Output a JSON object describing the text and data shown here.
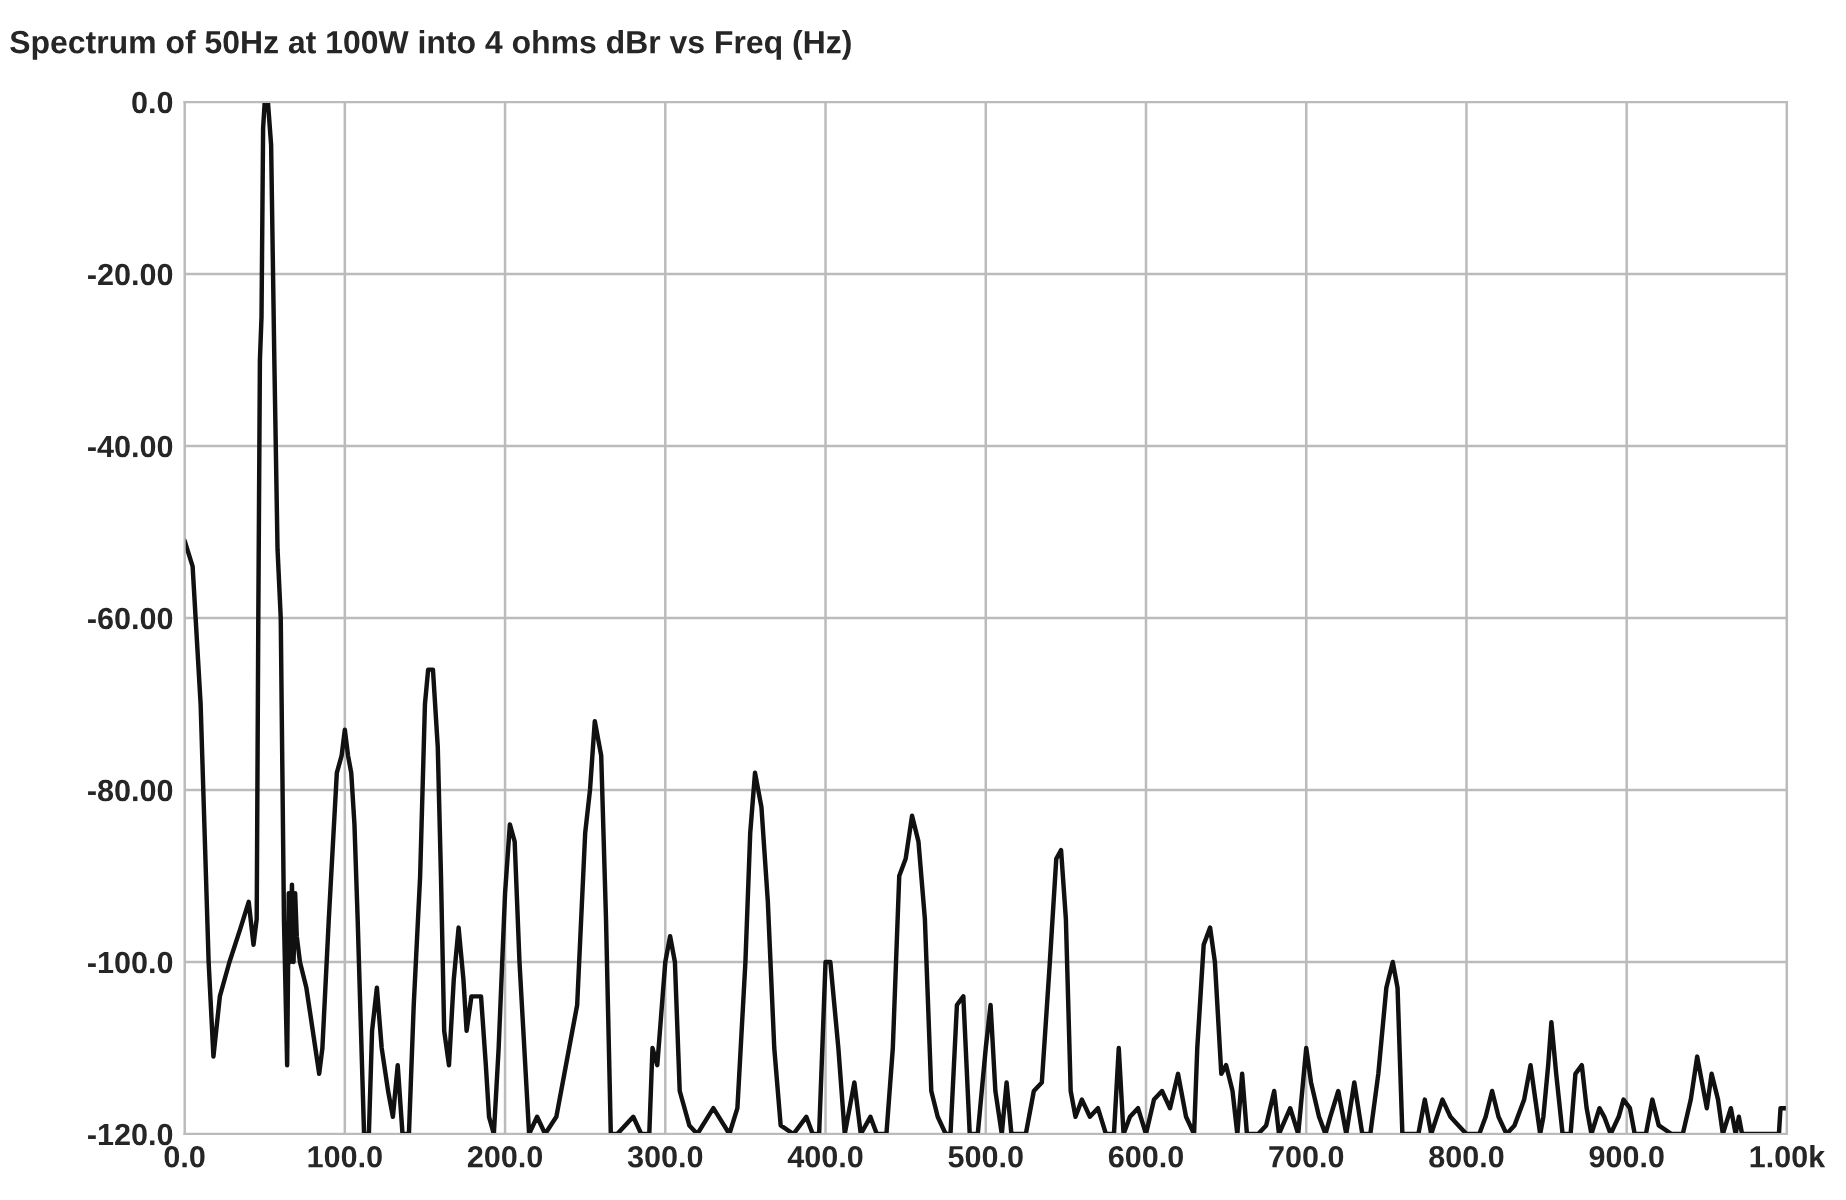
{
  "chart_data": {
    "type": "line",
    "title": "Spectrum of 50Hz at 100W into 4 ohms dBr vs Freq (Hz)",
    "xlim": [
      0,
      1000
    ],
    "ylim": [
      -120,
      0
    ],
    "xticks": [
      {
        "value": 0,
        "label": "0.0"
      },
      {
        "value": 100,
        "label": "100.0"
      },
      {
        "value": 200,
        "label": "200.0"
      },
      {
        "value": 300,
        "label": "300.0"
      },
      {
        "value": 400,
        "label": "400.0"
      },
      {
        "value": 500,
        "label": "500.0"
      },
      {
        "value": 600,
        "label": "600.0"
      },
      {
        "value": 700,
        "label": "700.0"
      },
      {
        "value": 800,
        "label": "800.0"
      },
      {
        "value": 900,
        "label": "900.0"
      },
      {
        "value": 1000,
        "label": "1.00k"
      }
    ],
    "yticks": [
      {
        "value": 0,
        "label": "0.0"
      },
      {
        "value": -20,
        "label": "-20.00"
      },
      {
        "value": -40,
        "label": "-40.00"
      },
      {
        "value": -60,
        "label": "-60.00"
      },
      {
        "value": -80,
        "label": "-80.00"
      },
      {
        "value": -100,
        "label": "-100.0"
      },
      {
        "value": -120,
        "label": "-120.0"
      }
    ],
    "grid": true,
    "marker": "none",
    "line_style": "solid",
    "series": [
      {
        "color": "#111111",
        "x": [
          0,
          5,
          10,
          15,
          18,
          22,
          28,
          35,
          40,
          43,
          45,
          46,
          47,
          48,
          49,
          50,
          52,
          54,
          56,
          58,
          60,
          62,
          64,
          65,
          66,
          67,
          68,
          69,
          70,
          72,
          76,
          80,
          84,
          86,
          90,
          95,
          98,
          100,
          102,
          104,
          106,
          108,
          112,
          115,
          117,
          120,
          123,
          127,
          130,
          133,
          136,
          140,
          143,
          147,
          150,
          152,
          155,
          158,
          160,
          162,
          165,
          168,
          171,
          174,
          176,
          179,
          185,
          188,
          190,
          193,
          196,
          200,
          203,
          206,
          209,
          212,
          215,
          220,
          225,
          232,
          240,
          245,
          250,
          253,
          256,
          260,
          263,
          266,
          270,
          280,
          285,
          290,
          292,
          295,
          300,
          303,
          306,
          309,
          315,
          320,
          330,
          340,
          345,
          350,
          353,
          356,
          360,
          364,
          368,
          372,
          380,
          388,
          392,
          396,
          400,
          403,
          408,
          412,
          418,
          422,
          428,
          432,
          438,
          442,
          446,
          450,
          454,
          458,
          462,
          466,
          470,
          475,
          478,
          482,
          486,
          490,
          495,
          500,
          503,
          506,
          510,
          513,
          516,
          525,
          530,
          535,
          540,
          544,
          547,
          550,
          553,
          556,
          560,
          565,
          570,
          575,
          580,
          583,
          586,
          590,
          595,
          600,
          605,
          610,
          615,
          620,
          625,
          630,
          632,
          636,
          640,
          643,
          647,
          650,
          654,
          657,
          660,
          663,
          670,
          675,
          680,
          683,
          690,
          695,
          700,
          703,
          708,
          712,
          715,
          720,
          725,
          730,
          735,
          740,
          745,
          750,
          754,
          757,
          760,
          765,
          770,
          774,
          778,
          785,
          790,
          795,
          800,
          808,
          812,
          816,
          820,
          825,
          830,
          836,
          840,
          843,
          846,
          848,
          851,
          853,
          856,
          860,
          865,
          868,
          872,
          875,
          878,
          883,
          886,
          890,
          895,
          898,
          902,
          905,
          912,
          916,
          920,
          928,
          935,
          940,
          944,
          947,
          950,
          953,
          957,
          960,
          965,
          968,
          970,
          972,
          995,
          996,
          1000
        ],
        "values": [
          -51,
          -54,
          -70,
          -100,
          -111,
          -104,
          -100,
          -96,
          -93,
          -98,
          -95,
          -60,
          -30,
          -25,
          -3,
          0,
          0,
          -5,
          -30,
          -52,
          -60,
          -95,
          -112,
          -92,
          -100,
          -91,
          -100,
          -92,
          -97,
          -100,
          -103,
          -108,
          -113,
          -110,
          -95,
          -78,
          -76,
          -73,
          -76,
          -78,
          -84,
          -95,
          -120,
          -120,
          -108,
          -103,
          -110,
          -115,
          -118,
          -112,
          -120,
          -120,
          -105,
          -90,
          -70,
          -66,
          -66,
          -75,
          -90,
          -108,
          -112,
          -102,
          -96,
          -102,
          -108,
          -104,
          -104,
          -112,
          -118,
          -120,
          -110,
          -92,
          -84,
          -86,
          -100,
          -110,
          -120,
          -118,
          -120,
          -118,
          -110,
          -105,
          -85,
          -80,
          -72,
          -76,
          -95,
          -120,
          -120,
          -118,
          -120,
          -120,
          -110,
          -112,
          -100,
          -97,
          -100,
          -115,
          -119,
          -120,
          -117,
          -120,
          -117,
          -100,
          -85,
          -78,
          -82,
          -93,
          -110,
          -119,
          -120,
          -118,
          -120,
          -120,
          -100,
          -100,
          -110,
          -120,
          -114,
          -120,
          -118,
          -120,
          -120,
          -110,
          -90,
          -88,
          -83,
          -86,
          -95,
          -115,
          -118,
          -120,
          -120,
          -105,
          -104,
          -120,
          -120,
          -110,
          -105,
          -115,
          -120,
          -114,
          -120,
          -120,
          -115,
          -114,
          -100,
          -88,
          -87,
          -95,
          -115,
          -118,
          -116,
          -118,
          -117,
          -120,
          -120,
          -110,
          -120,
          -118,
          -117,
          -120,
          -116,
          -115,
          -117,
          -113,
          -118,
          -120,
          -110,
          -98,
          -96,
          -100,
          -113,
          -112,
          -115,
          -120,
          -113,
          -120,
          -120,
          -119,
          -115,
          -120,
          -117,
          -120,
          -110,
          -114,
          -118,
          -120,
          -118,
          -115,
          -120,
          -114,
          -120,
          -120,
          -113,
          -103,
          -100,
          -103,
          -120,
          -120,
          -120,
          -116,
          -120,
          -116,
          -118,
          -119,
          -120,
          -120,
          -118,
          -115,
          -118,
          -120,
          -119,
          -116,
          -112,
          -116,
          -120,
          -118,
          -112,
          -107,
          -113,
          -120,
          -120,
          -113,
          -112,
          -117,
          -120,
          -117,
          -118,
          -120,
          -118,
          -116,
          -117,
          -120,
          -120,
          -116,
          -119,
          -120,
          -120,
          -116,
          -111,
          -114,
          -117,
          -113,
          -116,
          -120,
          -117,
          -120,
          -118,
          -120,
          -120,
          -117,
          -117
        ]
      }
    ]
  }
}
